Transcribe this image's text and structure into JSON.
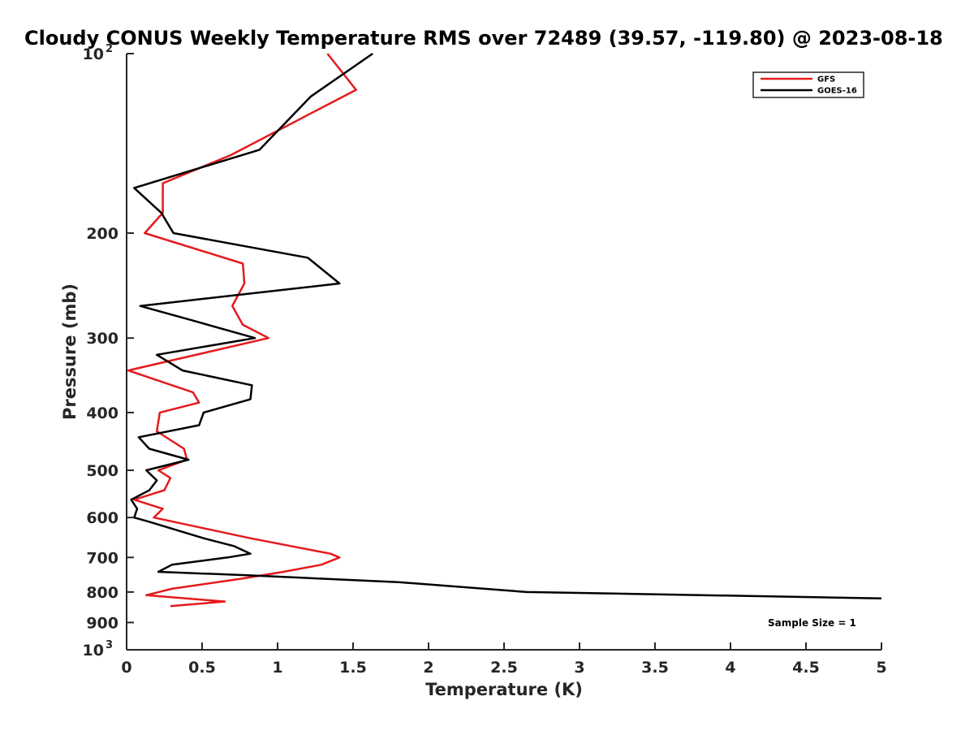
{
  "chart_data": {
    "type": "line",
    "title": "Cloudy CONUS Weekly Temperature RMS over 72489 (39.57, -119.80) @ 2023-08-18",
    "xlabel": "Temperature (K)",
    "ylabel": "Pressure (mb)",
    "xlim": [
      0,
      5
    ],
    "ylim": [
      100,
      1000
    ],
    "y_scale": "log",
    "y_reversed": true,
    "x_ticks": [
      "0",
      "0.5",
      "1",
      "1.5",
      "2",
      "2.5",
      "3",
      "3.5",
      "4",
      "4.5",
      "5"
    ],
    "y_ticks": [
      {
        "value": 100,
        "label": "10",
        "sup": "2"
      },
      {
        "value": 200,
        "label": "200",
        "sup": ""
      },
      {
        "value": 300,
        "label": "300",
        "sup": ""
      },
      {
        "value": 400,
        "label": "400",
        "sup": ""
      },
      {
        "value": 500,
        "label": "500",
        "sup": ""
      },
      {
        "value": 600,
        "label": "600",
        "sup": ""
      },
      {
        "value": 700,
        "label": "700",
        "sup": ""
      },
      {
        "value": 800,
        "label": "800",
        "sup": ""
      },
      {
        "value": 900,
        "label": "900",
        "sup": ""
      },
      {
        "value": 1000,
        "label": "10",
        "sup": "3"
      }
    ],
    "grid": false,
    "legend_position": "top-right",
    "annotation": "Sample Size = 1",
    "series": [
      {
        "name": "GFS",
        "color": "#e41a1c",
        "points": [
          [
            1.33,
            100
          ],
          [
            1.52,
            115
          ],
          [
            0.69,
            148
          ],
          [
            0.24,
            165
          ],
          [
            0.24,
            185
          ],
          [
            0.12,
            200
          ],
          [
            0.77,
            225
          ],
          [
            0.78,
            243
          ],
          [
            0.7,
            265
          ],
          [
            0.77,
            285
          ],
          [
            0.94,
            300
          ],
          [
            0.01,
            340
          ],
          [
            0.44,
            370
          ],
          [
            0.48,
            385
          ],
          [
            0.22,
            400
          ],
          [
            0.2,
            430
          ],
          [
            0.38,
            460
          ],
          [
            0.4,
            480
          ],
          [
            0.21,
            500
          ],
          [
            0.29,
            515
          ],
          [
            0.25,
            540
          ],
          [
            0.05,
            560
          ],
          [
            0.24,
            580
          ],
          [
            0.18,
            600
          ],
          [
            0.82,
            650
          ],
          [
            1.35,
            690
          ],
          [
            1.41,
            700
          ],
          [
            1.29,
            720
          ],
          [
            1.04,
            740
          ],
          [
            0.76,
            760
          ],
          [
            0.3,
            790
          ],
          [
            0.13,
            810
          ],
          [
            0.65,
            830
          ],
          [
            0.29,
            845
          ]
        ]
      },
      {
        "name": "GOES-16",
        "color": "#000000",
        "points": [
          [
            1.63,
            100
          ],
          [
            1.22,
            118
          ],
          [
            0.88,
            145
          ],
          [
            0.05,
            168
          ],
          [
            0.23,
            185
          ],
          [
            0.31,
            200
          ],
          [
            1.2,
            220
          ],
          [
            1.41,
            243
          ],
          [
            0.09,
            265
          ],
          [
            0.43,
            280
          ],
          [
            0.85,
            300
          ],
          [
            0.2,
            320
          ],
          [
            0.37,
            340
          ],
          [
            0.83,
            360
          ],
          [
            0.82,
            380
          ],
          [
            0.51,
            400
          ],
          [
            0.48,
            420
          ],
          [
            0.08,
            440
          ],
          [
            0.15,
            460
          ],
          [
            0.41,
            480
          ],
          [
            0.13,
            500
          ],
          [
            0.2,
            520
          ],
          [
            0.15,
            540
          ],
          [
            0.03,
            560
          ],
          [
            0.07,
            580
          ],
          [
            0.05,
            600
          ],
          [
            0.15,
            610
          ],
          [
            0.51,
            650
          ],
          [
            0.71,
            670
          ],
          [
            0.82,
            690
          ],
          [
            0.67,
            700
          ],
          [
            0.3,
            720
          ],
          [
            0.21,
            740
          ],
          [
            0.8,
            750
          ],
          [
            1.8,
            770
          ],
          [
            2.65,
            800
          ],
          [
            5.0,
            820
          ]
        ]
      }
    ]
  }
}
